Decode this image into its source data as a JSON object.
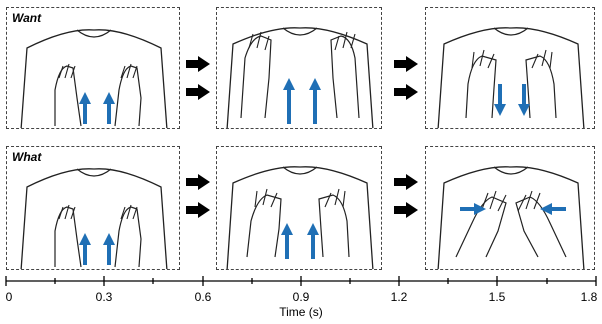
{
  "rows": [
    {
      "label": "Want"
    },
    {
      "label": "What"
    }
  ],
  "axis": {
    "title": "Time (s)",
    "ticks": [
      "0",
      "0.3",
      "0.6",
      "0.9",
      "1.2",
      "1.5",
      "1.8"
    ]
  },
  "colors": {
    "arrow": "#1f6fb5",
    "transition_arrow": "#000000",
    "border": "#444444"
  }
}
